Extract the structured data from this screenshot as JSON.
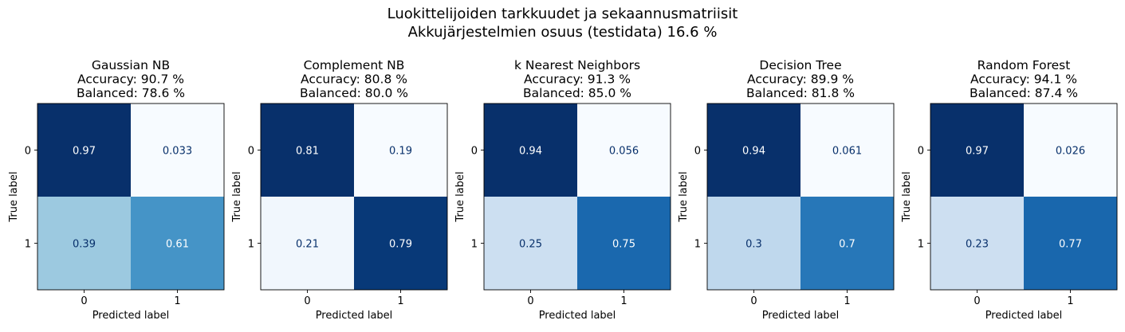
{
  "figure": {
    "suptitle_line1": "Luokittelijoiden tarkkuudet ja sekaannusmatriisit",
    "suptitle_line2": "Akkujärjestelmien osuus (testidata) 16.6 %"
  },
  "colormap": {
    "name": "Blues",
    "stops": [
      "#f7fbff",
      "#deebf7",
      "#c6dbef",
      "#9ecae1",
      "#6baed6",
      "#4292c6",
      "#2171b5",
      "#08519c",
      "#08306b"
    ],
    "text_on_dark": "#ffffff",
    "text_on_light": "#08306b"
  },
  "chart_data": [
    {
      "type": "heatmap",
      "title": [
        "Gaussian NB",
        "Accuracy: 90.7 %",
        "Balanced: 78.6 %"
      ],
      "xlabel": "Predicted label",
      "ylabel": "True label",
      "x_ticks": [
        "0",
        "1"
      ],
      "y_ticks": [
        "0",
        "1"
      ],
      "values": [
        [
          0.97,
          0.033
        ],
        [
          0.39,
          0.61
        ]
      ],
      "labels": [
        [
          "0.97",
          "0.033"
        ],
        [
          "0.39",
          "0.61"
        ]
      ]
    },
    {
      "type": "heatmap",
      "title": [
        "Complement NB",
        "Accuracy: 80.8 %",
        "Balanced: 80.0 %"
      ],
      "xlabel": "Predicted label",
      "ylabel": "True label",
      "x_ticks": [
        "0",
        "1"
      ],
      "y_ticks": [
        "0",
        "1"
      ],
      "values": [
        [
          0.81,
          0.19
        ],
        [
          0.21,
          0.79
        ]
      ],
      "labels": [
        [
          "0.81",
          "0.19"
        ],
        [
          "0.21",
          "0.79"
        ]
      ]
    },
    {
      "type": "heatmap",
      "title": [
        "k Nearest Neighbors",
        "Accuracy: 91.3 %",
        "Balanced: 85.0 %"
      ],
      "xlabel": "Predicted label",
      "ylabel": "True label",
      "x_ticks": [
        "0",
        "1"
      ],
      "y_ticks": [
        "0",
        "1"
      ],
      "values": [
        [
          0.94,
          0.056
        ],
        [
          0.25,
          0.75
        ]
      ],
      "labels": [
        [
          "0.94",
          "0.056"
        ],
        [
          "0.25",
          "0.75"
        ]
      ]
    },
    {
      "type": "heatmap",
      "title": [
        "Decision Tree",
        "Accuracy: 89.9 %",
        "Balanced: 81.8 %"
      ],
      "xlabel": "Predicted label",
      "ylabel": "True label",
      "x_ticks": [
        "0",
        "1"
      ],
      "y_ticks": [
        "0",
        "1"
      ],
      "values": [
        [
          0.94,
          0.061
        ],
        [
          0.3,
          0.7
        ]
      ],
      "labels": [
        [
          "0.94",
          "0.061"
        ],
        [
          "0.3",
          "0.7"
        ]
      ]
    },
    {
      "type": "heatmap",
      "title": [
        "Random Forest",
        "Accuracy: 94.1 %",
        "Balanced: 87.4 %"
      ],
      "xlabel": "Predicted label",
      "ylabel": "True label",
      "x_ticks": [
        "0",
        "1"
      ],
      "y_ticks": [
        "0",
        "1"
      ],
      "values": [
        [
          0.97,
          0.026
        ],
        [
          0.23,
          0.77
        ]
      ],
      "labels": [
        [
          "0.97",
          "0.026"
        ],
        [
          "0.23",
          "0.77"
        ]
      ]
    }
  ]
}
